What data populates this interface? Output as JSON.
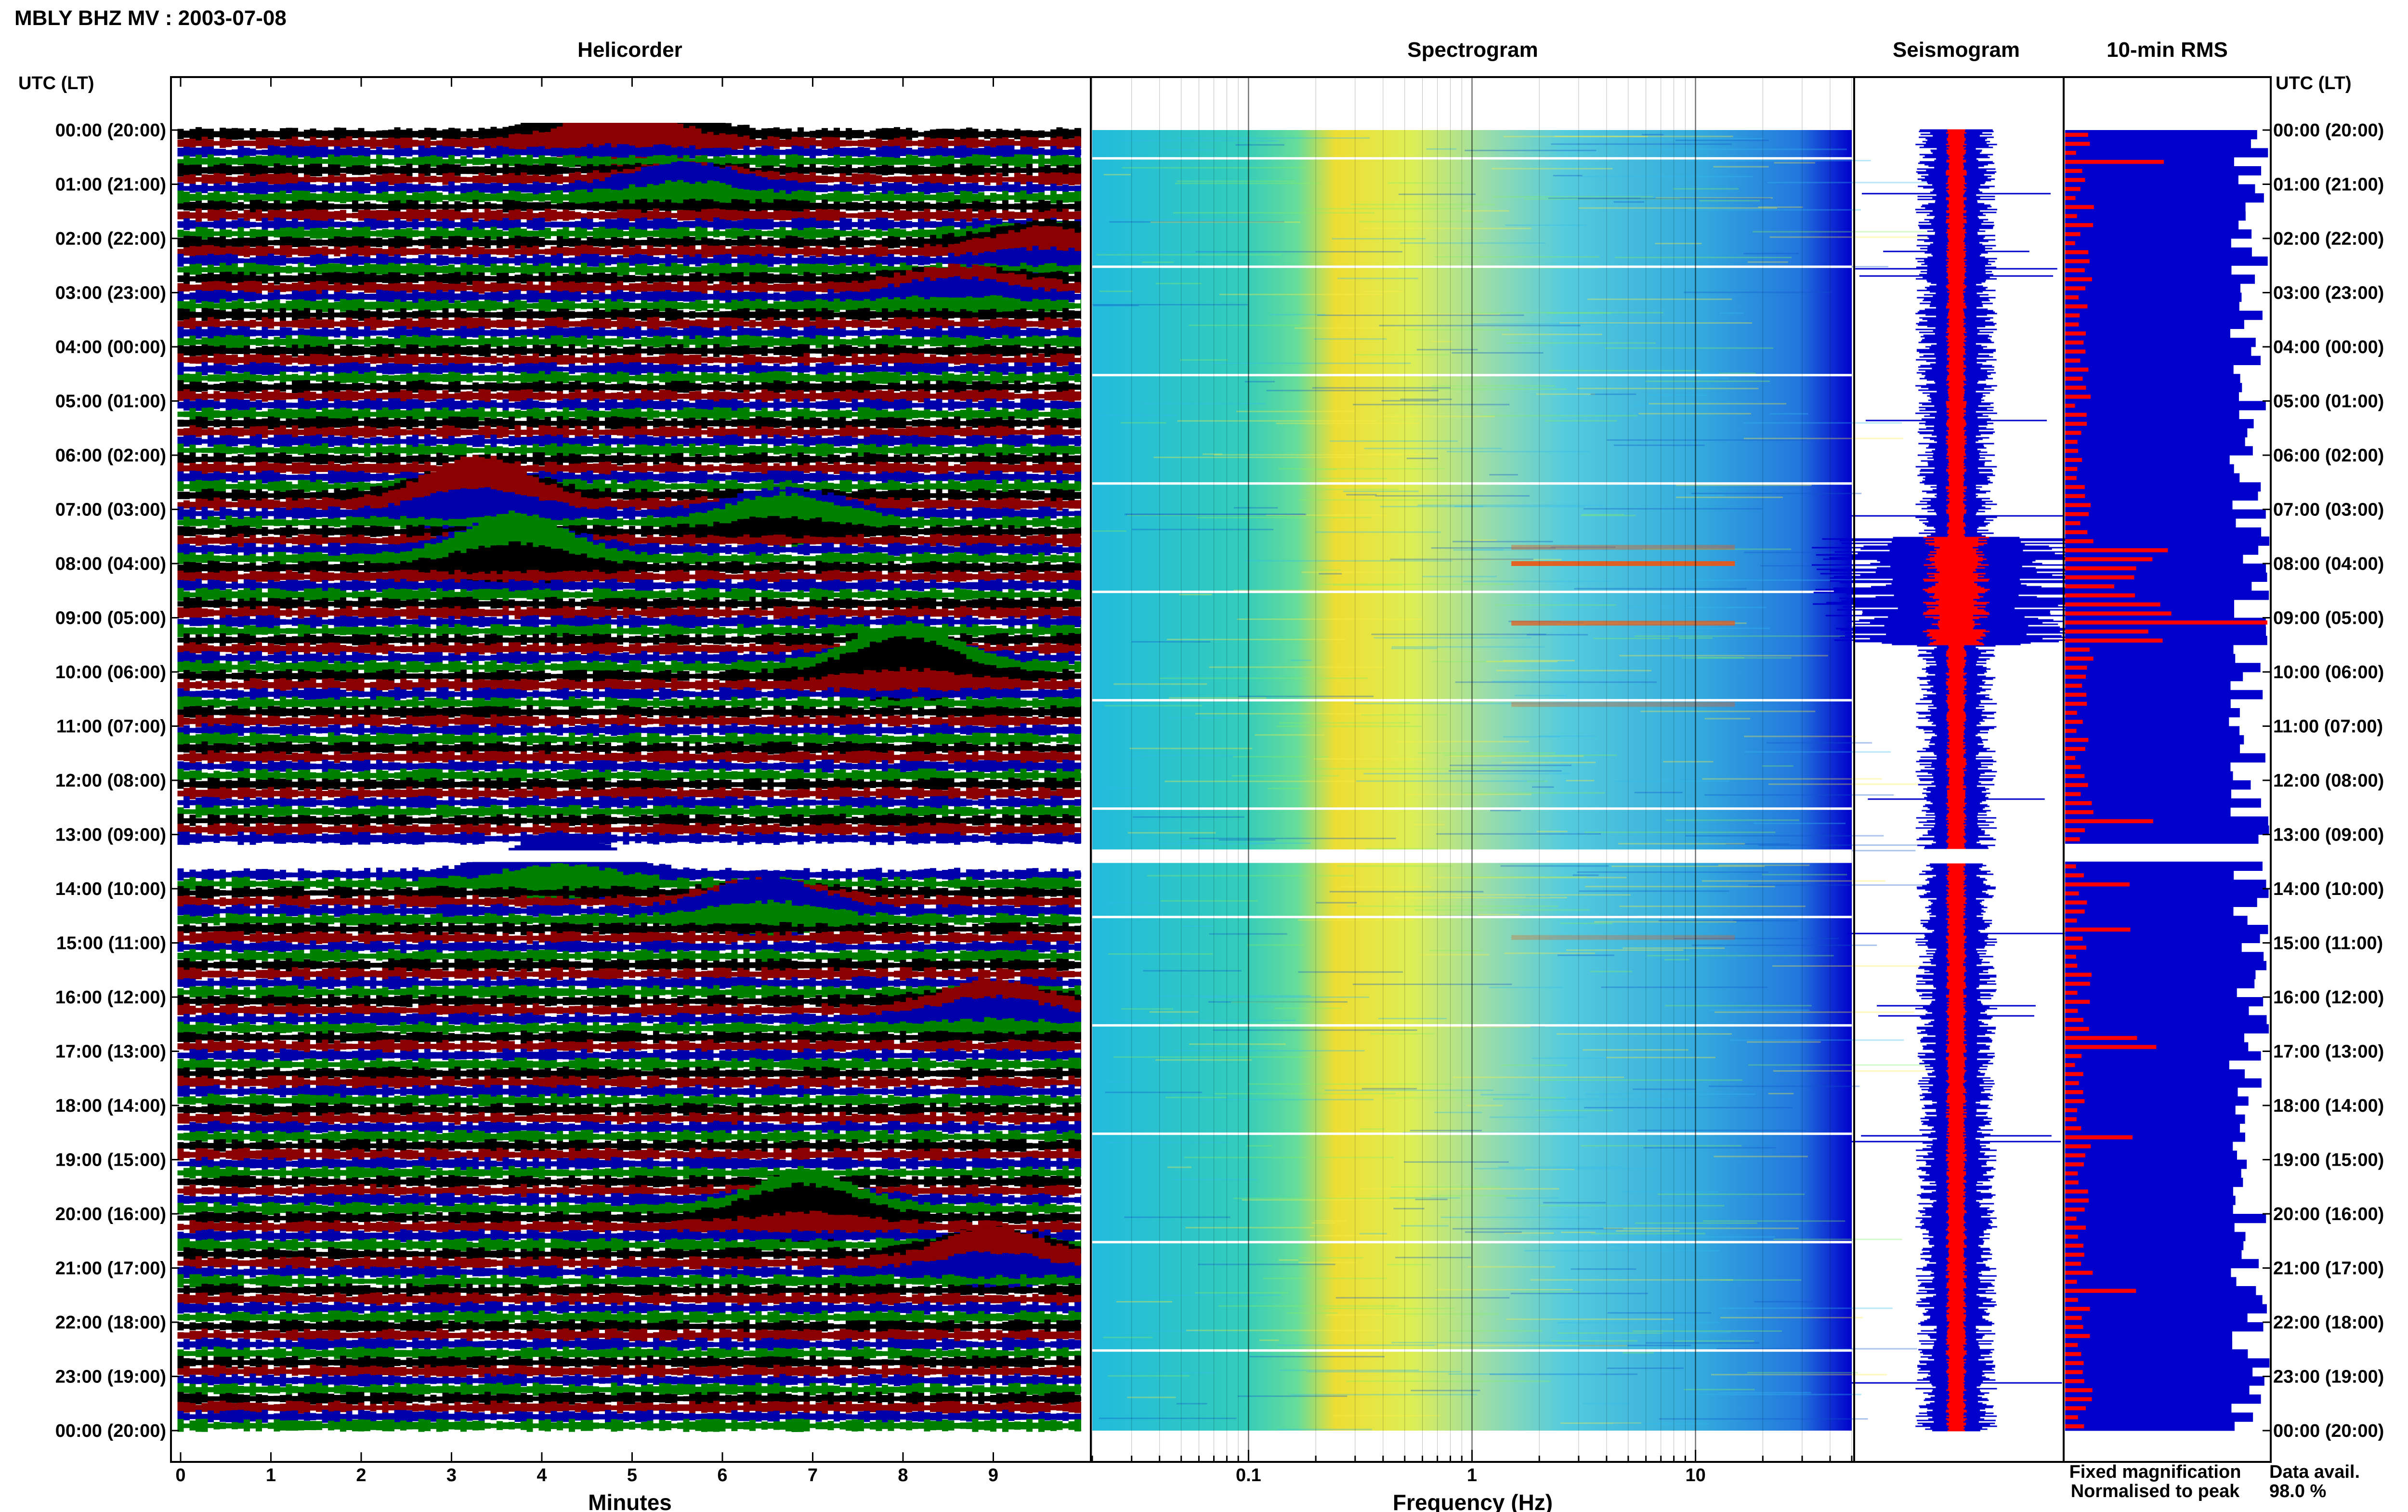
{
  "figure": {
    "title": "MBLY BHZ MV : 2003-07-08",
    "time_axis_label": "UTC (LT)"
  },
  "panels": {
    "helicorder": {
      "title": "Helicorder",
      "xlabel": "Minutes"
    },
    "spectrogram": {
      "title": "Spectrogram",
      "xlabel": "Frequency (Hz)"
    },
    "seismogram": {
      "title": "Seismogram"
    },
    "rms": {
      "title": "10-min RMS"
    }
  },
  "legend": {
    "fixed": "Fixed magnification",
    "normalised": "Normalised to peak",
    "fixed_color": "#0000cc",
    "normalised_color": "#ff0000"
  },
  "data_availability": {
    "label": "Data avail.",
    "value": "98.0 %"
  },
  "chart_data": {
    "type": "heatmap",
    "time_labels": [
      "00:00 (20:00)",
      "01:00 (21:00)",
      "02:00 (22:00)",
      "03:00 (23:00)",
      "04:00 (00:00)",
      "05:00 (01:00)",
      "06:00 (02:00)",
      "07:00 (03:00)",
      "08:00 (04:00)",
      "09:00 (05:00)",
      "10:00 (06:00)",
      "11:00 (07:00)",
      "12:00 (08:00)",
      "13:00 (09:00)",
      "14:00 (10:00)",
      "15:00 (11:00)",
      "16:00 (12:00)",
      "17:00 (13:00)",
      "18:00 (14:00)",
      "19:00 (15:00)",
      "20:00 (16:00)",
      "21:00 (17:00)",
      "22:00 (18:00)",
      "23:00 (19:00)",
      "00:00 (20:00)"
    ],
    "helicorder": {
      "x_ticks": [
        "0",
        "1",
        "2",
        "3",
        "4",
        "5",
        "6",
        "7",
        "8",
        "9"
      ],
      "xlim": [
        0,
        10
      ],
      "trace_colors": [
        "#000000",
        "#8b0000",
        "#0000aa",
        "#008000"
      ],
      "rows_per_hour": 6,
      "events": [
        {
          "hour": 0.0,
          "minute": 4.9,
          "amp": 1.0
        },
        {
          "hour": 1.0,
          "minute": 5.6,
          "amp": 0.4
        },
        {
          "hour": 2.1,
          "minute": 9.6,
          "amp": 0.45
        },
        {
          "hour": 2.9,
          "minute": 8.6,
          "amp": 0.4
        },
        {
          "hour": 6.8,
          "minute": 3.3,
          "amp": 0.9
        },
        {
          "hour": 7.1,
          "minute": 6.7,
          "amp": 0.55
        },
        {
          "hour": 7.8,
          "minute": 3.7,
          "amp": 0.85
        },
        {
          "hour": 9.9,
          "minute": 8.0,
          "amp": 0.9
        },
        {
          "hour": 13.6,
          "minute": 4.2,
          "amp": 0.85
        },
        {
          "hour": 14.3,
          "minute": 6.5,
          "amp": 0.6
        },
        {
          "hour": 16.2,
          "minute": 9.0,
          "amp": 0.55
        },
        {
          "hour": 19.9,
          "minute": 6.9,
          "amp": 0.75
        },
        {
          "hour": 20.8,
          "minute": 9.0,
          "amp": 0.65
        }
      ]
    },
    "spectrogram": {
      "x_scale": "log",
      "xlim": [
        0.02,
        50
      ],
      "x_ticks": [
        0.1,
        1,
        10
      ],
      "x_tick_labels": [
        "0.1",
        "1",
        "10"
      ],
      "peak_band_hz": [
        0.2,
        0.8
      ],
      "colormap": "jet"
    },
    "seismogram": {
      "series": [
        "Fixed magnification",
        "Normalised to peak"
      ],
      "high_amplitude_hours": [
        7.5,
        9.5
      ]
    },
    "rms": {
      "series": [
        "Fixed magnification",
        "Normalised to peak"
      ],
      "peak_hour": 9.0
    },
    "data_gap_hour": 13.4
  }
}
